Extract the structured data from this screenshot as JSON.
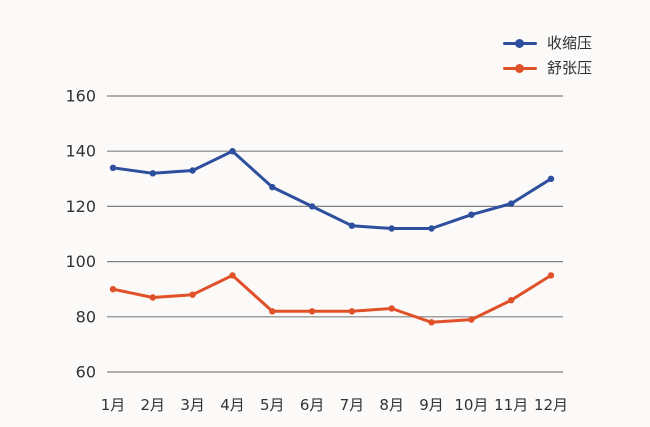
{
  "chart_data": {
    "type": "line",
    "title": "",
    "categories": [
      "1月",
      "2月",
      "3月",
      "4月",
      "5月",
      "6月",
      "7月",
      "8月",
      "9月",
      "10月",
      "11月",
      "12月"
    ],
    "series": [
      {
        "name": "收缩压",
        "color": "#2e4f9e",
        "values": [
          134,
          132,
          133,
          140,
          127,
          120,
          113,
          112,
          112,
          117,
          121,
          130
        ]
      },
      {
        "name": "舒张压",
        "color": "#e0512a",
        "values": [
          90,
          87,
          88,
          95,
          82,
          82,
          82,
          83,
          78,
          79,
          86,
          95
        ]
      }
    ],
    "xlabel": "",
    "ylabel": "",
    "ylim": [
      60,
      160
    ],
    "yticks": [
      60,
      80,
      100,
      120,
      140,
      160
    ],
    "grid": "horizontal",
    "legend_position": "top-right",
    "marker": "dot"
  },
  "colors": {
    "background": "#fbfaf8",
    "gridline": "#828282",
    "tick_text": "#333333",
    "systolic": "#2e4f9e",
    "diastolic": "#e0512a"
  }
}
